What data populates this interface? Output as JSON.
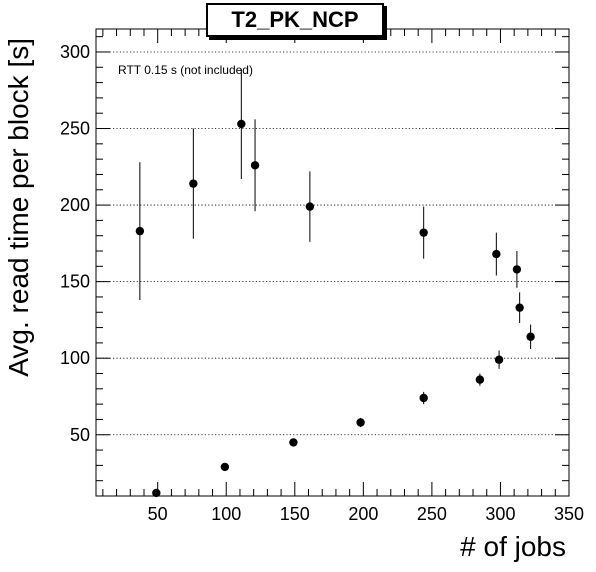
{
  "chart_data": {
    "type": "scatter",
    "title": "T2_PK_NCP",
    "xlabel": "# of jobs",
    "ylabel": "Avg. read time per block [s]",
    "annotation": "RTT 0.15 s (not included)",
    "xlim": [
      5,
      350
    ],
    "ylim": [
      10,
      315
    ],
    "xticks": [
      50,
      100,
      150,
      200,
      250,
      300,
      350
    ],
    "yticks": [
      50,
      100,
      150,
      200,
      250,
      300
    ],
    "grid": "horizontal dotted",
    "marker_color": "#000000",
    "points": [
      {
        "x": 37,
        "y": 183,
        "err": 45
      },
      {
        "x": 49,
        "y": 12,
        "err": 0
      },
      {
        "x": 76,
        "y": 214,
        "err": 36
      },
      {
        "x": 99,
        "y": 29,
        "err": 0
      },
      {
        "x": 111,
        "y": 253,
        "err": 36
      },
      {
        "x": 121,
        "y": 226,
        "err": 30
      },
      {
        "x": 149,
        "y": 45,
        "err": 0
      },
      {
        "x": 161,
        "y": 199,
        "err": 23
      },
      {
        "x": 198,
        "y": 58,
        "err": 3
      },
      {
        "x": 244,
        "y": 182,
        "err": 17
      },
      {
        "x": 244,
        "y": 74,
        "err": 4
      },
      {
        "x": 285,
        "y": 86,
        "err": 4
      },
      {
        "x": 297,
        "y": 168,
        "err": 14
      },
      {
        "x": 299,
        "y": 99,
        "err": 6
      },
      {
        "x": 312,
        "y": 158,
        "err": 12
      },
      {
        "x": 314,
        "y": 133,
        "err": 10
      },
      {
        "x": 322,
        "y": 114,
        "err": 8
      }
    ]
  }
}
